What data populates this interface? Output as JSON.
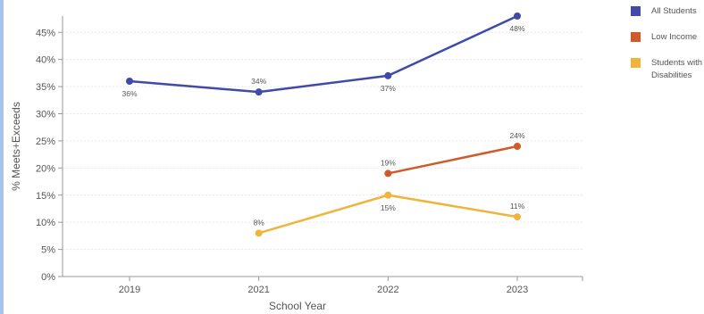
{
  "colors": {
    "accent_bar": "#a8c4ec",
    "grid": "#e6e6e6",
    "axis": "#999999"
  },
  "chart_data": {
    "type": "line",
    "categories": [
      "2019",
      "2021",
      "2022",
      "2023"
    ],
    "xlabel": "School Year",
    "ylabel": "% Meets+Exceeds",
    "ylim": [
      0,
      48
    ],
    "yticks": [
      0,
      5,
      10,
      15,
      20,
      25,
      30,
      35,
      40,
      45
    ],
    "ytick_labels": [
      "0%",
      "5%",
      "10%",
      "15%",
      "20%",
      "25%",
      "30%",
      "35%",
      "40%",
      "45%"
    ],
    "grid": true,
    "legend_position": "right",
    "series": [
      {
        "name": "All Students",
        "color": "#3f4aa9",
        "values": [
          36,
          34,
          37,
          48
        ],
        "labels": [
          "36%",
          "34%",
          "37%",
          "48%"
        ],
        "label_pos": [
          "below",
          "above",
          "below",
          "below"
        ]
      },
      {
        "name": "Low Income",
        "color": "#cf5a2a",
        "values": [
          null,
          null,
          19,
          24
        ],
        "labels": [
          "",
          "",
          "19%",
          "24%"
        ],
        "label_pos": [
          "",
          "",
          "above",
          "above"
        ]
      },
      {
        "name": "Students with Disabilities",
        "color": "#efb43c",
        "values": [
          null,
          8,
          15,
          11
        ],
        "labels": [
          "",
          "8%",
          "15%",
          "11%"
        ],
        "label_pos": [
          "",
          "above",
          "below",
          "above"
        ]
      }
    ]
  }
}
